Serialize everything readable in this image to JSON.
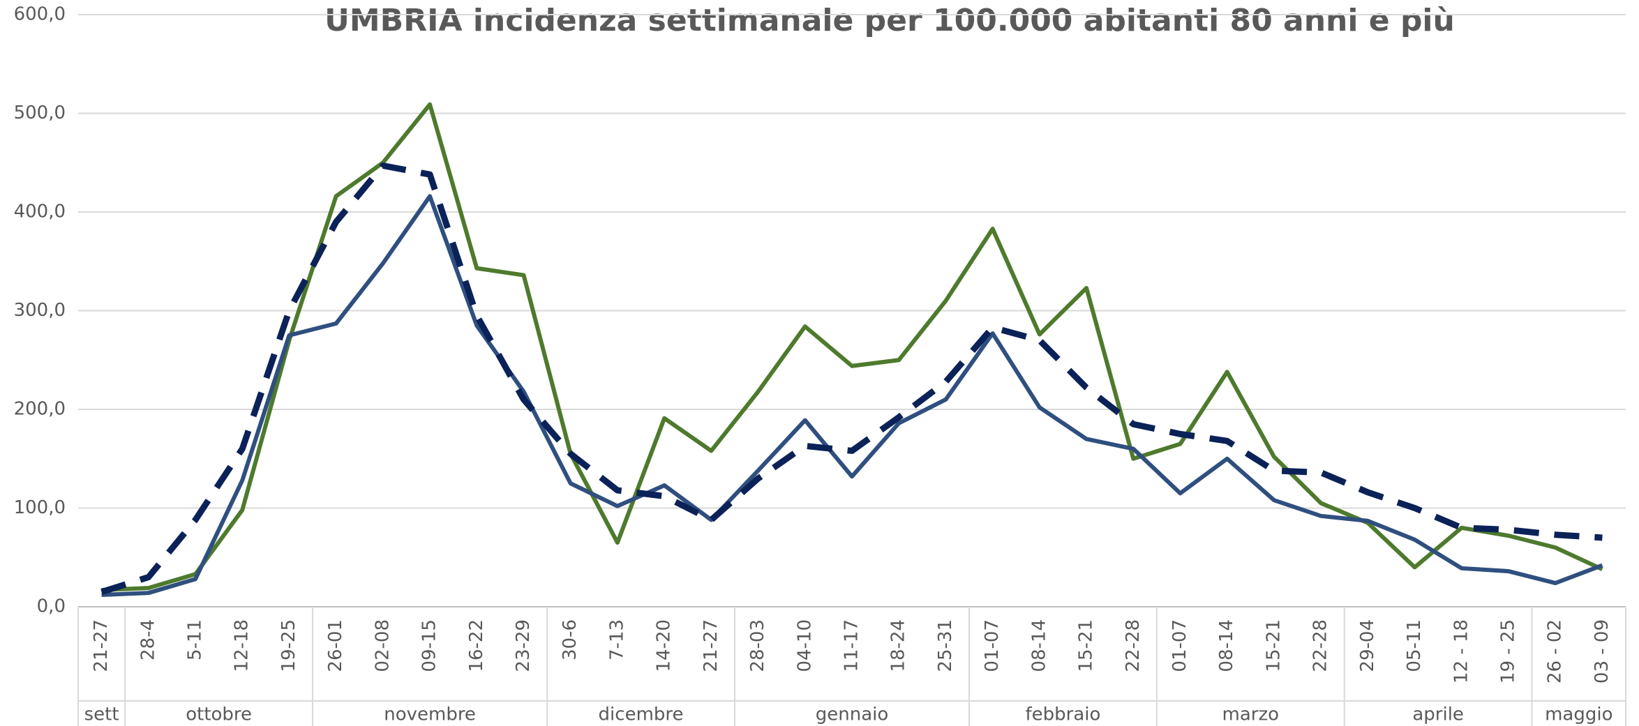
{
  "chart_data": {
    "type": "line",
    "title": "UMBRIA incidenza settimanale per 100.000 abitanti 80 anni e più",
    "categories": [
      "21-27",
      "28-4",
      "5-11",
      "12-18",
      "19-25",
      "26-01",
      "02-08",
      "09-15",
      "16-22",
      "23-29",
      "30-6",
      "7-13",
      "14-20",
      "21-27",
      "28-03",
      "04-10",
      "11-17",
      "18-24",
      "25-31",
      "01-07",
      "08-14",
      "15-21",
      "22-28",
      "01-07",
      "08-14",
      "15-21",
      "22-28",
      "29-04",
      "05-11",
      "12 - 18",
      "19 - 25",
      "26 - 02",
      "03 - 09"
    ],
    "groups": [
      {
        "label": "sett",
        "count": 1
      },
      {
        "label": "ottobre",
        "count": 4
      },
      {
        "label": "novembre",
        "count": 5
      },
      {
        "label": "dicembre",
        "count": 4
      },
      {
        "label": "gennaio",
        "count": 5
      },
      {
        "label": "febbraio",
        "count": 4
      },
      {
        "label": "marzo",
        "count": 4
      },
      {
        "label": "aprile",
        "count": 4
      },
      {
        "label": "maggio",
        "count": 2
      }
    ],
    "series": [
      {
        "color": "#4e7a2d",
        "dash": false,
        "values": [
          17,
          19,
          33,
          98,
          270,
          416,
          450,
          509,
          343,
          336,
          155,
          65,
          191,
          158,
          218,
          284,
          244,
          250,
          310,
          383,
          276,
          323,
          150,
          165,
          238,
          152,
          105,
          85,
          40,
          80,
          72,
          60,
          38
        ]
      },
      {
        "color": "#2f4f7f",
        "dash": false,
        "values": [
          12,
          14,
          28,
          128,
          275,
          287,
          348,
          416,
          285,
          218,
          125,
          102,
          123,
          88,
          138,
          189,
          132,
          186,
          210,
          277,
          202,
          170,
          160,
          115,
          150,
          108,
          92,
          87,
          68,
          39,
          36,
          24,
          42
        ]
      },
      {
        "color": "#0b2258",
        "dash": true,
        "values": [
          15,
          30,
          88,
          160,
          300,
          390,
          447,
          438,
          295,
          210,
          155,
          118,
          112,
          88,
          130,
          163,
          158,
          192,
          228,
          283,
          270,
          222,
          185,
          175,
          168,
          138,
          136,
          116,
          100,
          80,
          78,
          73,
          70
        ]
      }
    ],
    "ylim": [
      0,
      600
    ],
    "yticks": [
      {
        "value": 0,
        "label": "0,0"
      },
      {
        "value": 100,
        "label": "100,0"
      },
      {
        "value": 200,
        "label": "200,0"
      },
      {
        "value": 300,
        "label": "300,0"
      },
      {
        "value": 400,
        "label": "400,0"
      },
      {
        "value": 500,
        "label": "500,0"
      },
      {
        "value": 600,
        "label": "600,0"
      }
    ],
    "grid": true
  }
}
